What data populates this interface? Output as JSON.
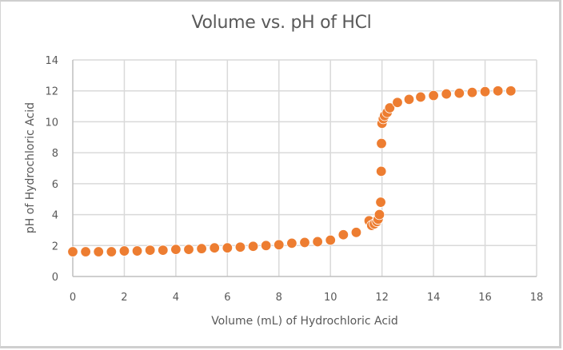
{
  "chart_data": {
    "type": "scatter",
    "title": "Volume vs. pH of HCl",
    "xlabel": "Volume (mL) of Hydrochloric Acid",
    "ylabel": "pH of Hydrochloric Acid",
    "xlim": [
      0,
      18
    ],
    "ylim": [
      0,
      14
    ],
    "x_ticks": [
      0,
      2,
      4,
      6,
      8,
      10,
      12,
      14,
      16,
      18
    ],
    "y_ticks": [
      0,
      2,
      4,
      6,
      8,
      10,
      12,
      14
    ],
    "grid": true,
    "legend": "none",
    "marker_color": "#ED7D31",
    "series": [
      {
        "name": "pH",
        "points": [
          [
            0,
            1.6
          ],
          [
            0.5,
            1.6
          ],
          [
            1,
            1.6
          ],
          [
            1.5,
            1.6
          ],
          [
            2,
            1.65
          ],
          [
            2.5,
            1.65
          ],
          [
            3,
            1.7
          ],
          [
            3.5,
            1.7
          ],
          [
            4,
            1.75
          ],
          [
            4.5,
            1.75
          ],
          [
            5,
            1.8
          ],
          [
            5.5,
            1.85
          ],
          [
            6,
            1.85
          ],
          [
            6.5,
            1.9
          ],
          [
            7,
            1.95
          ],
          [
            7.5,
            2.0
          ],
          [
            8,
            2.05
          ],
          [
            8.5,
            2.15
          ],
          [
            9,
            2.2
          ],
          [
            9.5,
            2.25
          ],
          [
            10,
            2.35
          ],
          [
            10.5,
            2.7
          ],
          [
            11,
            2.85
          ],
          [
            11.5,
            3.6
          ],
          [
            11.6,
            3.3
          ],
          [
            11.7,
            3.4
          ],
          [
            11.8,
            3.55
          ],
          [
            11.85,
            3.7
          ],
          [
            11.9,
            4.0
          ],
          [
            11.95,
            4.8
          ],
          [
            11.97,
            6.8
          ],
          [
            11.98,
            8.6
          ],
          [
            12.0,
            9.9
          ],
          [
            12.05,
            10.2
          ],
          [
            12.1,
            10.4
          ],
          [
            12.2,
            10.6
          ],
          [
            12.3,
            10.9
          ],
          [
            12.6,
            11.25
          ],
          [
            13.05,
            11.45
          ],
          [
            13.5,
            11.6
          ],
          [
            14.0,
            11.7
          ],
          [
            14.5,
            11.8
          ],
          [
            15.0,
            11.85
          ],
          [
            15.5,
            11.9
          ],
          [
            16.0,
            11.95
          ],
          [
            16.5,
            12.0
          ],
          [
            17.0,
            12.0
          ]
        ]
      }
    ]
  }
}
